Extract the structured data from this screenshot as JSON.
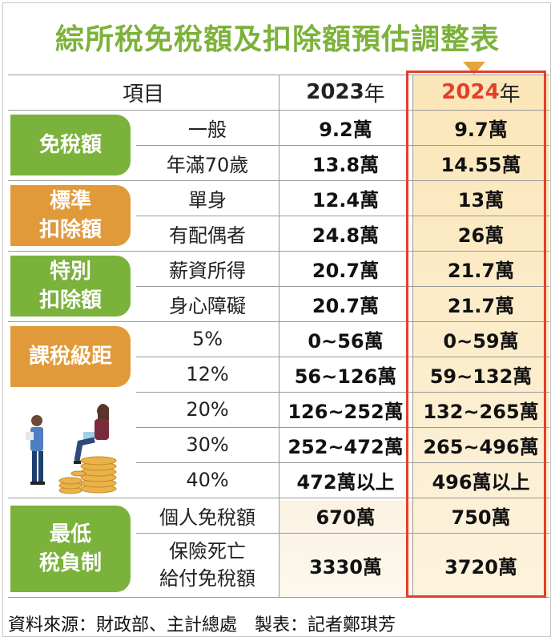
{
  "title": "綜所稅免稅額及扣除額預估調整表",
  "header": {
    "item": "項目",
    "y2023": "2023",
    "y2024": "2024",
    "year_suffix": "年"
  },
  "sections": [
    {
      "badge": "免稅額",
      "color": "green"
    },
    {
      "badge": "標準扣除額",
      "line1": "標準",
      "line2": "扣除額",
      "color": "orange"
    },
    {
      "badge": "特別扣除額",
      "line1": "特別",
      "line2": "扣除額",
      "color": "green"
    },
    {
      "badge": "課稅級距",
      "color": "orange"
    },
    {
      "badge": "最低稅負制",
      "line1": "最低",
      "line2": "稅負制",
      "color": "green"
    }
  ],
  "rows": [
    {
      "item": "一般",
      "y2023": "9.2萬",
      "y2024": "9.7萬"
    },
    {
      "item": "年滿70歲",
      "y2023": "13.8萬",
      "y2024": "14.55萬"
    },
    {
      "item": "單身",
      "y2023": "12.4萬",
      "y2024": "13萬"
    },
    {
      "item": "有配偶者",
      "y2023": "24.8萬",
      "y2024": "26萬"
    },
    {
      "item": "薪資所得",
      "y2023": "20.7萬",
      "y2024": "21.7萬"
    },
    {
      "item": "身心障礙",
      "y2023": "20.7萬",
      "y2024": "21.7萬"
    },
    {
      "item": "5%",
      "y2023": "0~56萬",
      "y2024": "0~59萬"
    },
    {
      "item": "12%",
      "y2023": "56~126萬",
      "y2024": "59~132萬"
    },
    {
      "item": "20%",
      "y2023": "126~252萬",
      "y2024": "132~265萬"
    },
    {
      "item": "30%",
      "y2023": "252~472萬",
      "y2024": "265~496萬"
    },
    {
      "item": "40%",
      "y2023": "472萬以上",
      "y2024": "496萬以上"
    },
    {
      "item": "個人免稅額",
      "y2023": "670萬",
      "y2024": "750萬"
    },
    {
      "item_line1": "保險死亡",
      "item_line2": "給付免稅額",
      "y2023": "3330萬",
      "y2024": "3720萬"
    }
  ],
  "footer": "資料來源：財政部、主計總處　製表：記者鄭琪芳",
  "colors": {
    "title_green": "#7cb23a",
    "badge_green": "#7ab23c",
    "badge_orange": "#e09a3a",
    "highlight_red": "#e2402a",
    "col2024_bg": "#fbe6b8"
  },
  "illustration": "people-with-coin-stacks-illustration"
}
